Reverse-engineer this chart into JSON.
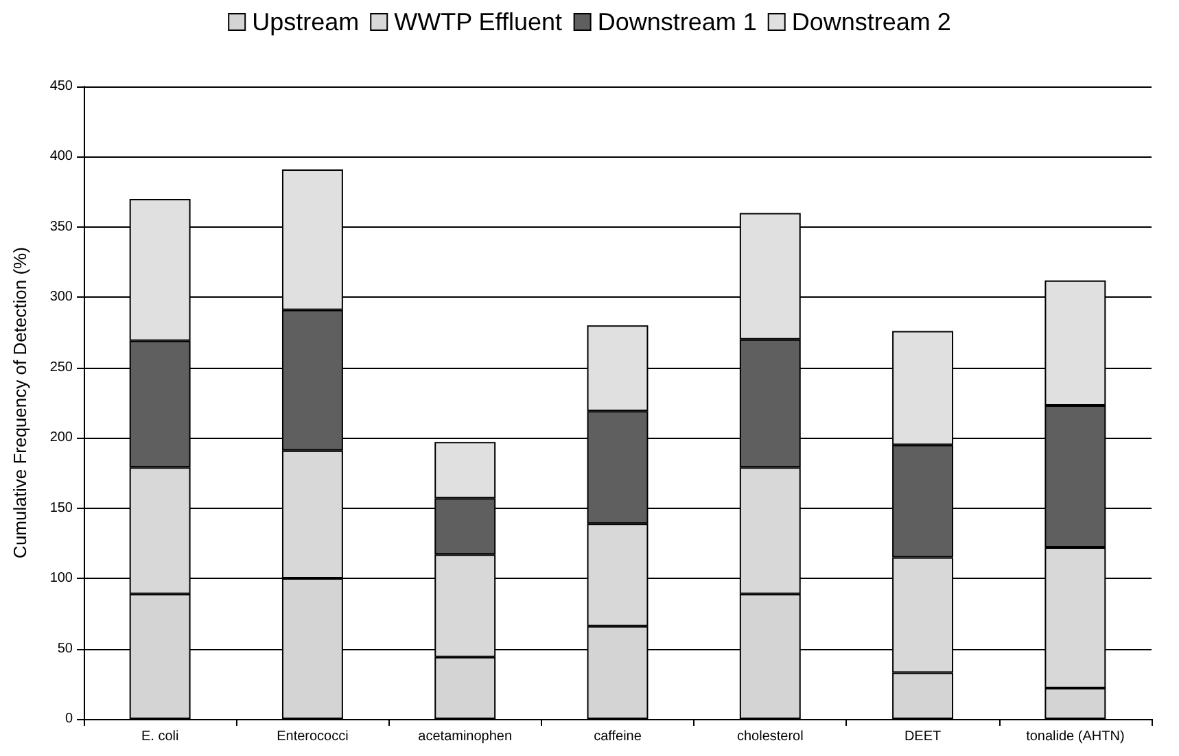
{
  "chart_data": {
    "type": "bar",
    "stacked": true,
    "ylabel": "Cumulative Frequency of Detection (%)",
    "categories": [
      "E. coli",
      "Enterococci",
      "acetaminophen",
      "caffeine",
      "cholesterol",
      "DEET",
      "tonalide (AHTN)"
    ],
    "series": [
      {
        "name": "Upstream",
        "color": "#d4d4d4",
        "values": [
          89,
          100,
          44,
          66,
          89,
          33,
          22
        ]
      },
      {
        "name": "WWTP Effluent",
        "color": "#d8d8d8",
        "values": [
          90,
          91,
          73,
          73,
          90,
          82,
          100
        ]
      },
      {
        "name": "Downstream 1",
        "color": "#5f5f5f",
        "values": [
          90,
          100,
          40,
          80,
          91,
          80,
          101
        ]
      },
      {
        "name": "Downstream 2",
        "color": "#e0e0e0",
        "values": [
          101,
          100,
          40,
          61,
          90,
          81,
          89
        ]
      }
    ],
    "ylim": [
      0,
      450
    ],
    "yticks": [
      0,
      50,
      100,
      150,
      200,
      250,
      300,
      350,
      400,
      450
    ],
    "grid": "y",
    "legend": "top"
  }
}
